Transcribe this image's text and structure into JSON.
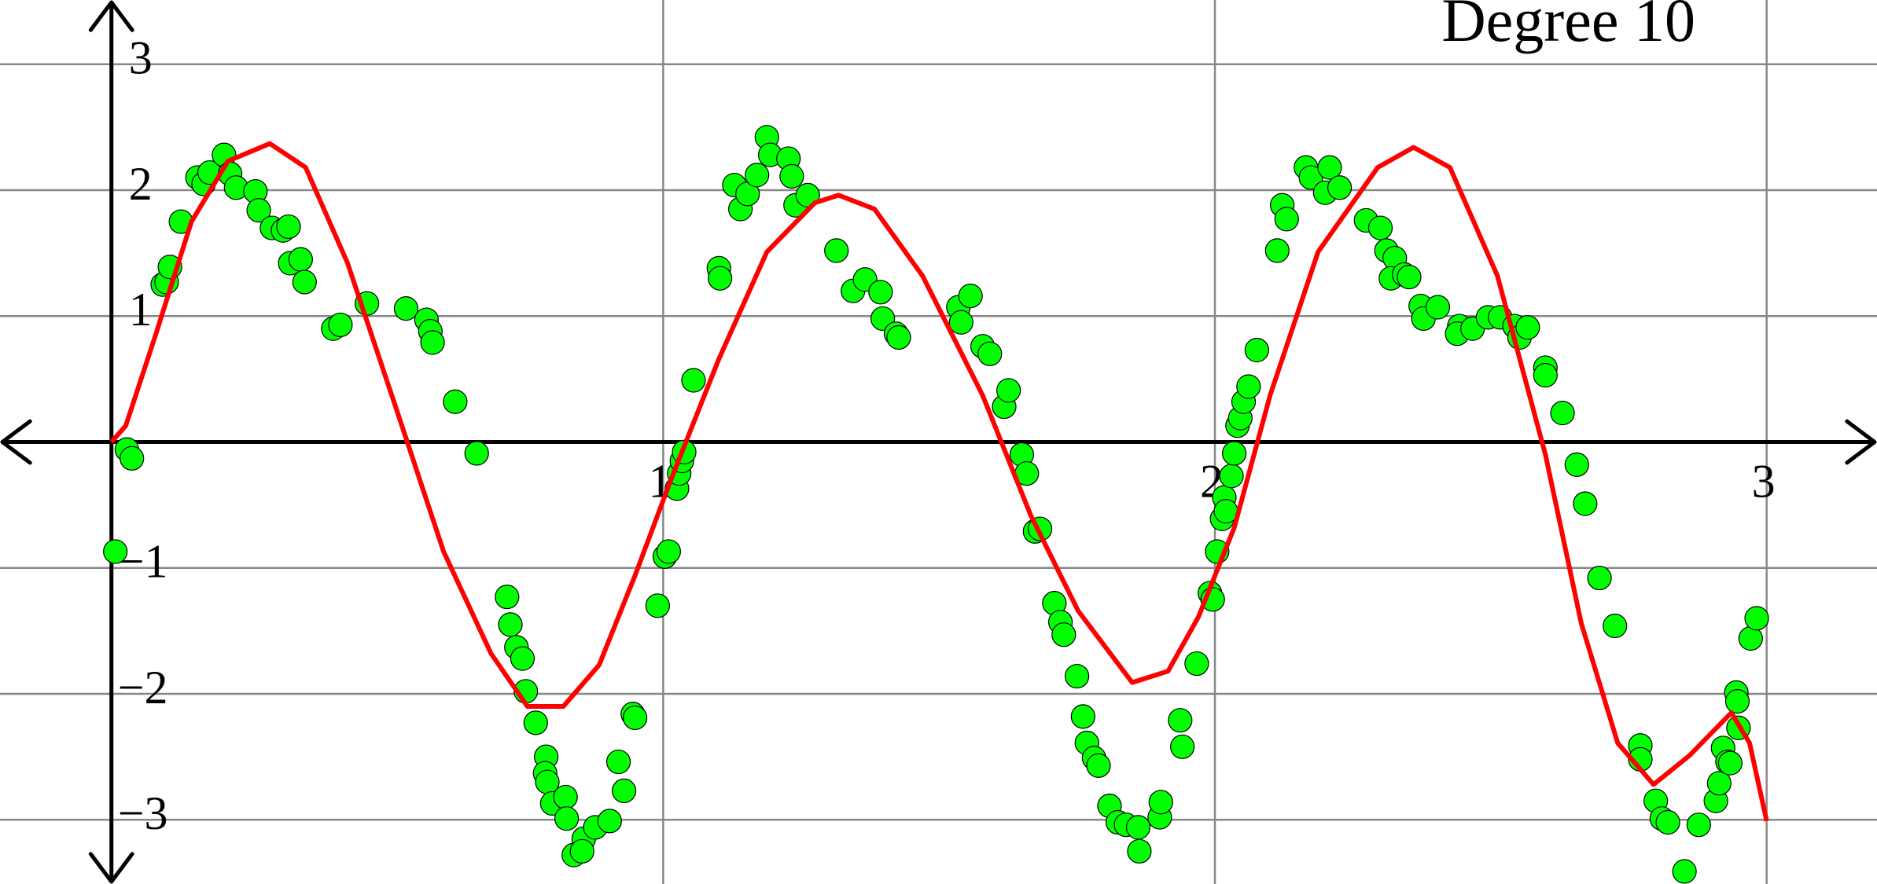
{
  "chart_data": {
    "type": "scatter",
    "title": "Degree 10",
    "xlim": [
      -0.202,
      3.2
    ],
    "ylim": [
      -3.51,
      3.51
    ],
    "xticks": [
      1,
      2,
      3
    ],
    "yticks": [
      {
        "value": -3,
        "label": "−3"
      },
      {
        "value": -2,
        "label": "−2"
      },
      {
        "value": -1,
        "label": "−1"
      },
      1,
      2,
      3
    ],
    "grid": true,
    "series": [
      {
        "type": "scatter",
        "color": "#00ff00",
        "x": [
          0.007,
          0.028,
          0.037,
          0.093,
          0.1,
          0.106,
          0.126,
          0.156,
          0.167,
          0.178,
          0.204,
          0.215,
          0.226,
          0.261,
          0.267,
          0.291,
          0.311,
          0.321,
          0.324,
          0.343,
          0.35,
          0.402,
          0.415,
          0.463,
          0.534,
          0.571,
          0.578,
          0.582,
          0.623,
          0.662,
          0.717,
          0.723,
          0.734,
          0.745,
          0.751,
          0.769,
          0.788,
          0.786,
          0.79,
          0.799,
          0.823,
          0.825,
          0.838,
          0.856,
          0.853,
          0.877,
          0.903,
          0.919,
          0.929,
          0.945,
          0.949,
          0.99,
          1.003,
          1.01,
          1.025,
          1.029,
          1.034,
          1.038,
          1.055,
          1.101,
          1.103,
          1.129,
          1.14,
          1.153,
          1.17,
          1.188,
          1.194,
          1.227,
          1.233,
          1.24,
          1.262,
          1.314,
          1.344,
          1.366,
          1.394,
          1.398,
          1.422,
          1.427,
          1.535,
          1.54,
          1.557,
          1.579,
          1.592,
          1.618,
          1.626,
          1.65,
          1.659,
          1.674,
          1.683,
          1.709,
          1.72,
          1.726,
          1.75,
          1.761,
          1.768,
          1.781,
          1.789,
          1.809,
          1.824,
          1.839,
          1.861,
          1.863,
          1.9,
          1.902,
          1.937,
          1.941,
          1.967,
          1.991,
          1.996,
          2.004,
          2.013,
          2.017,
          2.02,
          2.03,
          2.035,
          2.041,
          2.046,
          2.052,
          2.061,
          2.076,
          2.113,
          2.122,
          2.13,
          2.165,
          2.174,
          2.2,
          2.208,
          2.226,
          2.274,
          2.3,
          2.311,
          2.326,
          2.319,
          2.343,
          2.352,
          2.373,
          2.378,
          2.404,
          2.443,
          2.439,
          2.467,
          2.495,
          2.517,
          2.543,
          2.552,
          2.567,
          2.599,
          2.599,
          2.63,
          2.656,
          2.671,
          2.697,
          2.725,
          2.771,
          2.771,
          2.799,
          2.81,
          2.821,
          2.851,
          2.877,
          2.908,
          2.914,
          2.921,
          2.929,
          2.934,
          2.945,
          2.947,
          2.949,
          2.971,
          2.982
        ],
        "values": [
          -0.87,
          -0.06,
          -0.13,
          1.25,
          1.27,
          1.39,
          1.75,
          2.1,
          2.05,
          2.14,
          2.28,
          2.13,
          2.02,
          1.99,
          1.84,
          1.7,
          1.68,
          1.71,
          1.42,
          1.45,
          1.27,
          0.9,
          0.93,
          1.1,
          1.06,
          0.97,
          0.88,
          0.79,
          0.32,
          -0.09,
          -1.23,
          -1.45,
          -1.63,
          -1.72,
          -1.98,
          -2.23,
          -2.5,
          -2.63,
          -2.7,
          -2.87,
          -2.82,
          -2.99,
          -3.28,
          -3.15,
          -3.25,
          -3.06,
          -3.01,
          -2.54,
          -2.77,
          -2.16,
          -2.19,
          -1.3,
          -0.91,
          -0.87,
          -0.37,
          -0.25,
          -0.15,
          -0.08,
          0.49,
          1.38,
          1.3,
          2.04,
          1.85,
          1.97,
          2.12,
          2.42,
          2.28,
          2.25,
          2.11,
          1.88,
          1.96,
          1.52,
          1.2,
          1.29,
          1.19,
          0.98,
          0.86,
          0.83,
          1.07,
          0.95,
          1.16,
          0.76,
          0.7,
          0.28,
          0.41,
          -0.1,
          -0.25,
          -0.71,
          -0.69,
          -1.28,
          -1.43,
          -1.53,
          -1.86,
          -2.18,
          -2.39,
          -2.51,
          -2.57,
          -2.89,
          -3.02,
          -3.04,
          -3.06,
          -3.25,
          -2.98,
          -2.86,
          -2.21,
          -2.42,
          -1.76,
          -1.2,
          -1.25,
          -0.87,
          -0.61,
          -0.44,
          -0.55,
          -0.27,
          -0.09,
          0.13,
          0.19,
          0.32,
          0.44,
          0.73,
          1.52,
          1.88,
          1.77,
          2.18,
          2.1,
          1.98,
          2.18,
          2.02,
          1.76,
          1.7,
          1.52,
          1.46,
          1.3,
          1.33,
          1.31,
          1.08,
          0.98,
          1.07,
          0.92,
          0.86,
          0.9,
          0.99,
          0.99,
          0.92,
          0.83,
          0.91,
          0.59,
          0.53,
          0.23,
          -0.18,
          -0.49,
          -1.08,
          -1.46,
          -2.41,
          -2.52,
          -2.85,
          -2.99,
          -3.02,
          -3.41,
          -3.04,
          -2.85,
          -2.71,
          -2.43,
          -2.54,
          -2.55,
          -1.99,
          -2.06,
          -2.27,
          -1.56,
          -1.4
        ]
      },
      {
        "type": "line",
        "color": "#ff0000",
        "x": [
          0,
          0.026,
          0.08,
          0.145,
          0.211,
          0.287,
          0.352,
          0.428,
          0.515,
          0.602,
          0.688,
          0.754,
          0.819,
          0.884,
          0.949,
          1.014,
          1.101,
          1.188,
          1.275,
          1.318,
          1.383,
          1.47,
          1.579,
          1.666,
          1.752,
          1.85,
          1.915,
          1.97,
          2.035,
          2.1,
          2.187,
          2.295,
          2.36,
          2.426,
          2.512,
          2.599,
          2.664,
          2.73,
          2.795,
          2.86,
          2.936,
          2.969,
          3.0
        ],
        "values": [
          0,
          0.13,
          0.85,
          1.75,
          2.23,
          2.37,
          2.18,
          1.42,
          0.28,
          -0.87,
          -1.68,
          -2.1,
          -2.1,
          -1.77,
          -1.06,
          -0.3,
          0.66,
          1.51,
          1.9,
          1.96,
          1.85,
          1.32,
          0.37,
          -0.58,
          -1.34,
          -1.91,
          -1.82,
          -1.39,
          -0.68,
          0.37,
          1.51,
          2.18,
          2.34,
          2.18,
          1.32,
          -0.1,
          -1.44,
          -2.39,
          -2.72,
          -2.49,
          -2.15,
          -2.39,
          -3.01
        ]
      }
    ]
  }
}
